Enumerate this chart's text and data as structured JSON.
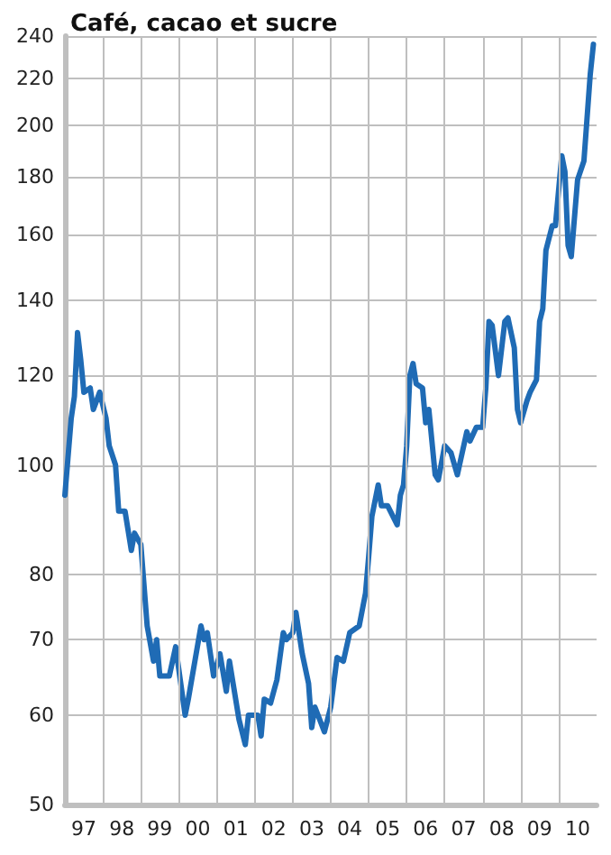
{
  "chart_data": {
    "type": "line",
    "title": "Café, cacao et sucre",
    "x": [
      "1997-01",
      "1997-03",
      "1997-04",
      "1997-05",
      "1997-06",
      "1997-07",
      "1997-09",
      "1997-10",
      "1997-12",
      "1998-02",
      "1998-03",
      "1998-05",
      "1998-06",
      "1998-08",
      "1998-10",
      "1998-11",
      "1999-01",
      "1999-03",
      "1999-05",
      "1999-06",
      "1999-07",
      "1999-10",
      "1999-12",
      "2000-03",
      "2000-04",
      "2000-08",
      "2000-09",
      "2000-10",
      "2000-12",
      "2001-02",
      "2001-04",
      "2001-05",
      "2001-08",
      "2001-10",
      "2001-11",
      "2002-02",
      "2002-03",
      "2002-04",
      "2002-06",
      "2002-07",
      "2002-08",
      "2002-10",
      "2002-11",
      "2003-01",
      "2003-02",
      "2003-04",
      "2003-06",
      "2003-07",
      "2003-08",
      "2003-11",
      "2004-01",
      "2004-03",
      "2004-05",
      "2004-07",
      "2004-10",
      "2004-12",
      "2005-01",
      "2005-02",
      "2005-04",
      "2005-05",
      "2005-07",
      "2005-10",
      "2005-11",
      "2005-12",
      "2006-01",
      "2006-02",
      "2006-03",
      "2006-04",
      "2006-06",
      "2006-07",
      "2006-08",
      "2006-10",
      "2006-11",
      "2007-01",
      "2007-03",
      "2007-05",
      "2007-08",
      "2007-09",
      "2007-11",
      "2008-01",
      "2008-02",
      "2008-03",
      "2008-04",
      "2008-06",
      "2008-08",
      "2008-09",
      "2008-11",
      "2008-12",
      "2009-01",
      "2009-03",
      "2009-04",
      "2009-06",
      "2009-07",
      "2009-08",
      "2009-09",
      "2009-11",
      "2009-12",
      "2010-02",
      "2010-03",
      "2010-04",
      "2010-05",
      "2010-07",
      "2010-09",
      "2010-11",
      "2010-12"
    ],
    "series": [
      {
        "color": "#1f6bb5",
        "values": [
          94,
          110,
          115,
          131,
          124,
          116,
          117,
          112,
          116,
          110,
          104,
          100,
          91,
          91,
          84,
          87,
          85,
          72,
          67,
          70,
          65,
          65,
          69,
          60,
          62,
          72,
          70,
          71,
          65,
          68,
          63,
          67,
          59.5,
          56.5,
          60,
          60,
          57.5,
          62,
          61.5,
          63,
          64.5,
          71,
          70,
          71,
          74,
          68,
          64,
          58.5,
          61,
          58,
          61,
          67.5,
          67,
          71,
          72,
          77,
          83,
          90,
          96,
          92,
          92,
          88.5,
          94,
          96,
          104,
          120,
          123,
          118,
          117,
          109,
          112,
          98,
          97,
          104,
          102.5,
          98,
          107,
          105,
          108,
          108,
          117,
          134,
          133,
          120,
          134,
          135,
          127,
          112,
          109,
          114,
          116,
          119,
          134,
          137.5,
          155,
          163,
          163,
          188,
          182,
          156.5,
          153,
          179,
          186,
          222,
          236
        ]
      }
    ],
    "xlim": [
      "1997-01",
      "2011-01"
    ],
    "xticks": [
      {
        "value": "1997-07",
        "label": "97"
      },
      {
        "value": "1998-07",
        "label": "98"
      },
      {
        "value": "1999-07",
        "label": "99"
      },
      {
        "value": "2000-07",
        "label": "00"
      },
      {
        "value": "2001-07",
        "label": "01"
      },
      {
        "value": "2002-07",
        "label": "02"
      },
      {
        "value": "2003-07",
        "label": "03"
      },
      {
        "value": "2004-07",
        "label": "04"
      },
      {
        "value": "2005-07",
        "label": "05"
      },
      {
        "value": "2006-07",
        "label": "06"
      },
      {
        "value": "2007-07",
        "label": "07"
      },
      {
        "value": "2008-07",
        "label": "08"
      },
      {
        "value": "2009-07",
        "label": "09"
      },
      {
        "value": "2010-07",
        "label": "10"
      },
      {
        "value": "1998-01",
        "label": null
      },
      {
        "value": "1999-01",
        "label": null
      },
      {
        "value": "2000-01",
        "label": null
      },
      {
        "value": "2001-01",
        "label": null
      },
      {
        "value": "2002-01",
        "label": null
      },
      {
        "value": "2003-01",
        "label": null
      },
      {
        "value": "2004-01",
        "label": null
      },
      {
        "value": "2005-01",
        "label": null
      },
      {
        "value": "2006-01",
        "label": null
      },
      {
        "value": "2007-01",
        "label": null
      },
      {
        "value": "2008-01",
        "label": null
      },
      {
        "value": "2009-01",
        "label": null
      },
      {
        "value": "2010-01",
        "label": null
      }
    ],
    "ylim": [
      50,
      240
    ],
    "yticks": [
      50,
      60,
      70,
      80,
      100,
      120,
      140,
      160,
      180,
      200,
      220,
      240
    ],
    "log": "y",
    "grid": true,
    "marker": "none",
    "line_style": "solid"
  }
}
